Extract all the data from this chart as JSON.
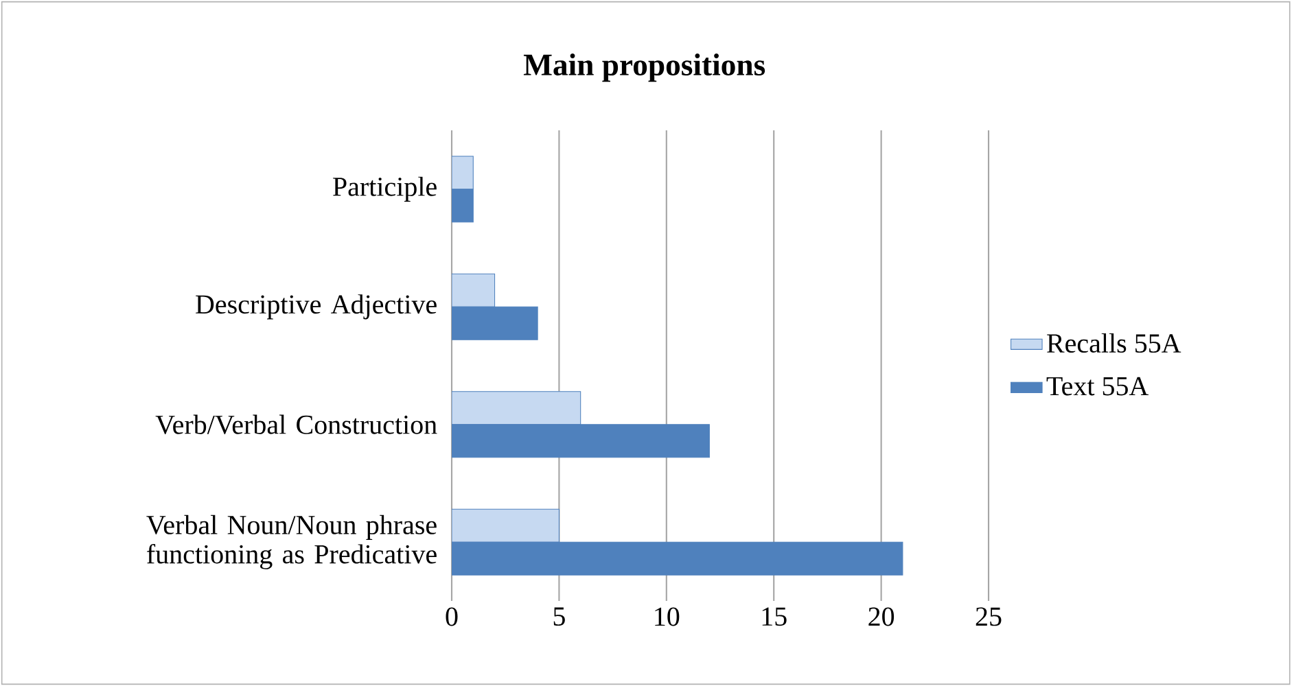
{
  "chart_data": {
    "type": "bar",
    "orientation": "horizontal",
    "title": "Main propositions",
    "categories": [
      "Participle",
      "Descriptive Adjective",
      "Verb/Verbal Construction",
      "Verbal Noun/Noun phrase functioning as Predicative"
    ],
    "series": [
      {
        "name": "Recalls 55A",
        "color": "#c6d9f1",
        "values": [
          1,
          2,
          6,
          5
        ]
      },
      {
        "name": "Text 55A",
        "color": "#4f81bd",
        "values": [
          1,
          4,
          12,
          21
        ]
      }
    ],
    "xlim": [
      0,
      25
    ],
    "xticks": [
      0,
      5,
      10,
      15,
      20,
      25
    ],
    "grid": "x",
    "legend": "right"
  }
}
